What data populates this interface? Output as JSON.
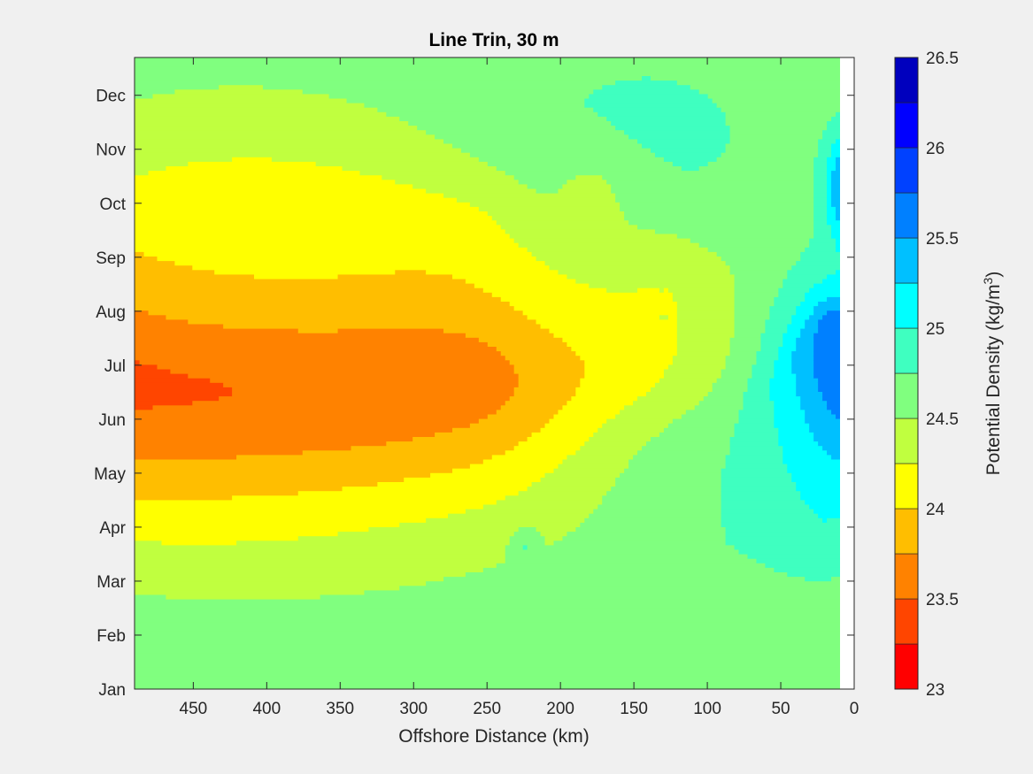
{
  "colors": {
    "figure_background": "#f0f0f0",
    "axes_background": "#ffffff",
    "axis_line": "#262626"
  },
  "chart_data": {
    "type": "heatmap",
    "subtype": "filled-contour",
    "title": "Line Trin, 30 m",
    "xlabel": "Offshore Distance (km)",
    "ylabel": "",
    "xlim": [
      0,
      490
    ],
    "x_reversed": true,
    "x_ticks": [
      450,
      400,
      350,
      300,
      250,
      200,
      150,
      100,
      50,
      0
    ],
    "y_categories": [
      "Jan",
      "Feb",
      "Mar",
      "Apr",
      "May",
      "Jun",
      "Jul",
      "Aug",
      "Sep",
      "Oct",
      "Nov",
      "Dec"
    ],
    "ylim_month_index": [
      0,
      11.7
    ],
    "grid": false,
    "colormap": "jet",
    "colorbar": {
      "label": "Potential Density (kg/m",
      "label_superscript": "3",
      "label_suffix": ")",
      "range": [
        23,
        26.5
      ],
      "tick_values": [
        23,
        23.5,
        24,
        24.5,
        25,
        25.5,
        26,
        26.5
      ],
      "tick_labels": [
        "23",
        "23.5",
        "24",
        "24.5",
        "25",
        "25.5",
        "26",
        "26.5"
      ],
      "levels": [
        23,
        23.25,
        23.5,
        23.75,
        24,
        24.25,
        24.5,
        24.75,
        25,
        25.25,
        25.5,
        25.75,
        26,
        26.25,
        26.5
      ],
      "level_colors": [
        "#ff0000",
        "#ff4500",
        "#ff8200",
        "#ffbe00",
        "#ffff00",
        "#c0ff3f",
        "#80ff7f",
        "#3fffc0",
        "#00ffff",
        "#00c0ff",
        "#0080ff",
        "#0041ff",
        "#0000ff",
        "#0000be"
      ]
    },
    "data_extent_km": [
      10,
      490
    ],
    "base_density": 24.62,
    "features": [
      {
        "x": 385,
        "y": 5.65,
        "value": 23.1,
        "sx": 230,
        "sy": 3.0
      },
      {
        "x": 330,
        "y": 7.6,
        "value": 24.45,
        "sx": 160,
        "sy": 1.4
      },
      {
        "x": 425,
        "y": 8.9,
        "value": 24.45,
        "sx": 120,
        "sy": 2.4
      },
      {
        "x": 180,
        "y": 8.3,
        "value": 24.52,
        "sx": 60,
        "sy": 2.5
      },
      {
        "x": 180,
        "y": 8.9,
        "value": 23.95,
        "sx": 16,
        "sy": 0.7
      },
      {
        "x": 130,
        "y": 6.8,
        "value": 24.4,
        "sx": 6,
        "sy": 0.45
      },
      {
        "x": 155,
        "y": 10.0,
        "value": 24.9,
        "sx": 95,
        "sy": 1.8
      },
      {
        "x": 300,
        "y": 2.7,
        "value": 24.8,
        "sx": 320,
        "sy": 2.6
      },
      {
        "x": 90,
        "y": 4.2,
        "value": 24.9,
        "sx": 90,
        "sy": 1.5
      },
      {
        "x": 260,
        "y": 0.2,
        "value": 24.5,
        "sx": 170,
        "sy": 0.6
      },
      {
        "x": 225,
        "y": 2.65,
        "value": 25.05,
        "sx": 8,
        "sy": 0.3
      },
      {
        "x": 20,
        "y": 5.5,
        "value": 25.55,
        "sx": 45,
        "sy": 2.1
      },
      {
        "x": 10,
        "y": 5.8,
        "value": 25.9,
        "sx": 20,
        "sy": 1.2
      },
      {
        "x": 5,
        "y": 9.3,
        "value": 25.6,
        "sx": 15,
        "sy": 1.0
      }
    ]
  }
}
